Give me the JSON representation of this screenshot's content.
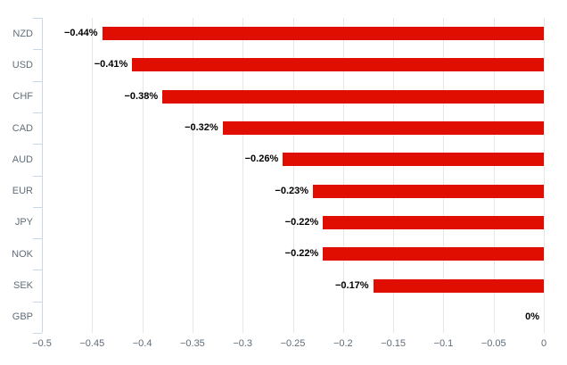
{
  "chart_data": {
    "type": "bar",
    "orientation": "horizontal",
    "title": "",
    "xlabel": "",
    "ylabel": "",
    "categories": [
      "NZD",
      "USD",
      "CHF",
      "CAD",
      "AUD",
      "EUR",
      "JPY",
      "NOK",
      "SEK",
      "GBP"
    ],
    "values": [
      -0.44,
      -0.41,
      -0.38,
      -0.32,
      -0.26,
      -0.23,
      -0.22,
      -0.22,
      -0.17,
      0
    ],
    "data_labels": [
      "−0.44%",
      "−0.41%",
      "−0.38%",
      "−0.32%",
      "−0.26%",
      "−0.23%",
      "−0.22%",
      "−0.22%",
      "−0.17%",
      "0%"
    ],
    "xlim": [
      -0.5,
      0
    ],
    "xticks": [
      -0.5,
      -0.45,
      -0.4,
      -0.35,
      -0.3,
      -0.25,
      -0.2,
      -0.15,
      -0.1,
      -0.05,
      0
    ],
    "xtick_labels": [
      "−0.5",
      "−0.45",
      "−0.4",
      "−0.35",
      "−0.3",
      "−0.25",
      "−0.2",
      "−0.15",
      "−0.1",
      "−0.05",
      "0"
    ],
    "grid": true,
    "legend": false,
    "colors": {
      "bar": "#e00d01",
      "grid": "#e6e6e6",
      "axis_line": "#ccd6eb",
      "tick_label": "#606d79",
      "data_label": "#000000",
      "background": "#ffffff"
    }
  }
}
